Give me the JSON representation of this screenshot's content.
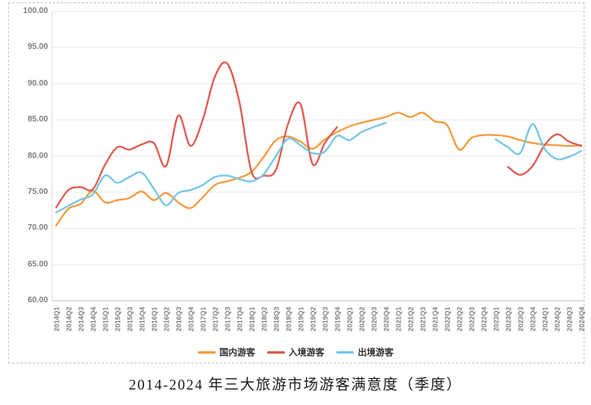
{
  "figure": {
    "title": "2014-2024 年三大旅游市场游客满意度（季度）"
  },
  "chart_data": {
    "type": "line",
    "title": "2014-2024 年三大旅游市场游客满意度（季度）",
    "ylim": [
      60,
      100
    ],
    "y_ticks": [
      "100.00",
      "95.00",
      "90.00",
      "85.00",
      "80.00",
      "75.00",
      "70.00",
      "65.00",
      "60.00"
    ],
    "grid": true,
    "legend_position": "bottom",
    "categories": [
      "2014Q1",
      "2014Q2",
      "2014Q3",
      "2014Q4",
      "2015Q1",
      "2015Q2",
      "2015Q3",
      "2015Q4",
      "2016Q1",
      "2016Q2",
      "2016Q3",
      "2016Q4",
      "2017Q1",
      "2017Q2",
      "2017Q3",
      "2017Q4",
      "2018Q1",
      "2018Q2",
      "2018Q3",
      "2018Q4",
      "2019Q1",
      "2019Q2",
      "2019Q3",
      "2019Q4",
      "2020Q1",
      "2020Q2",
      "2020Q3",
      "2020Q4",
      "2021Q1",
      "2021Q2",
      "2021Q3",
      "2021Q4",
      "2022Q1",
      "2022Q2",
      "2022Q3",
      "2022Q4",
      "2023Q1",
      "2023Q2",
      "2023Q3",
      "2023Q4",
      "2024Q1",
      "2024Q2",
      "2024Q3",
      "2024Q4"
    ],
    "series": [
      {
        "id": "domestic-tourists",
        "name": "国内游客",
        "color": "#F59B3E",
        "values": [
          70.4,
          72.7,
          73.4,
          75.2,
          73.6,
          73.9,
          74.2,
          75.1,
          73.9,
          74.9,
          73.6,
          72.8,
          74.3,
          76.0,
          76.5,
          77.0,
          77.8,
          79.9,
          82.2,
          82.7,
          82.0,
          81.0,
          82.3,
          83.3,
          84.1,
          84.6,
          85.0,
          85.4,
          86.0,
          85.4,
          86.0,
          84.8,
          84.3,
          80.9,
          82.5,
          82.9,
          82.9,
          82.7,
          82.2,
          81.8,
          81.6,
          81.5,
          81.4,
          81.5
        ]
      },
      {
        "id": "inbound-tourists",
        "name": "入境游客",
        "color": "#E05A50",
        "values": [
          72.9,
          75.3,
          75.7,
          75.4,
          78.8,
          81.2,
          80.9,
          81.6,
          81.8,
          78.6,
          85.6,
          81.4,
          85.0,
          91.0,
          92.8,
          87.5,
          77.8,
          77.3,
          78.1,
          84.5,
          87.2,
          78.9,
          81.8,
          84.0,
          null,
          null,
          null,
          null,
          null,
          null,
          null,
          null,
          null,
          null,
          null,
          null,
          null,
          78.5,
          77.4,
          78.6,
          81.5,
          83.0,
          82.0,
          81.4
        ]
      },
      {
        "id": "outbound-tourists",
        "name": "出境游客",
        "color": "#74C7E8",
        "values": [
          72.2,
          73.1,
          74.0,
          74.7,
          77.3,
          76.3,
          77.1,
          77.7,
          75.5,
          73.2,
          74.9,
          75.3,
          76.0,
          77.1,
          77.3,
          76.8,
          76.5,
          77.5,
          80.0,
          82.4,
          81.5,
          80.4,
          80.6,
          82.8,
          82.2,
          83.3,
          84.0,
          84.6,
          null,
          null,
          null,
          null,
          null,
          null,
          null,
          null,
          82.3,
          81.2,
          80.4,
          84.4,
          81.0,
          79.6,
          79.9,
          80.7
        ]
      }
    ]
  },
  "colors": {
    "gridline": "#ebebeb",
    "axis_line": "#c6c6c6",
    "tick_label": "#7f7f7f",
    "border_dash": "#c9c9c9",
    "title_text": "#1a1a1a"
  }
}
